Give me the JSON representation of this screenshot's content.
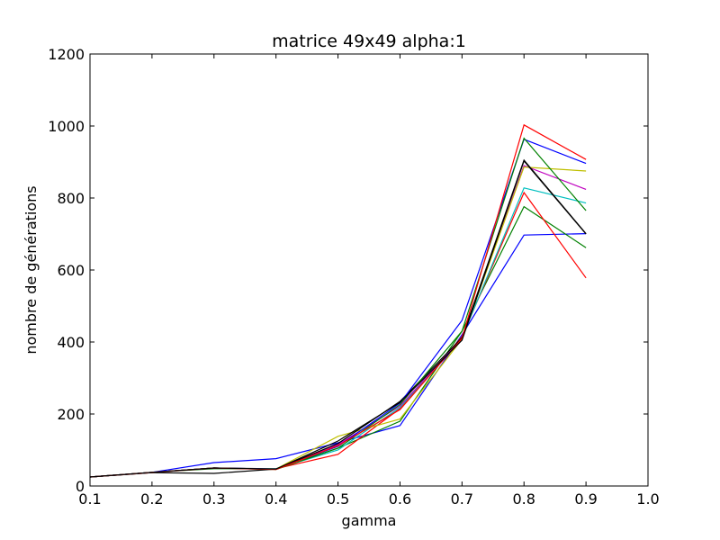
{
  "chart_data": {
    "type": "line",
    "title": "matrice 49x49 alpha:1",
    "xlabel": "gamma",
    "ylabel": "nombre de générations",
    "xlim": [
      0.1,
      1.0
    ],
    "ylim": [
      0,
      1200
    ],
    "xticks": [
      "0.1",
      "0.2",
      "0.3",
      "0.4",
      "0.5",
      "0.6",
      "0.7",
      "0.8",
      "0.9",
      "1.0"
    ],
    "yticks": [
      "0",
      "200",
      "400",
      "600",
      "800",
      "1000",
      "1200"
    ],
    "grid": false,
    "x": [
      0.1,
      0.2,
      0.3,
      0.4,
      0.5,
      0.6,
      0.7,
      0.8,
      0.9
    ],
    "series": [
      {
        "color": "#0000ff",
        "values": [
          25,
          38,
          65,
          76,
          120,
          168,
          420,
          697,
          701
        ]
      },
      {
        "color": "#008000",
        "values": [
          25,
          38,
          48,
          48,
          105,
          180,
          430,
          776,
          662
        ]
      },
      {
        "color": "#ff0000",
        "values": [
          25,
          37,
          50,
          48,
          88,
          215,
          415,
          815,
          578
        ]
      },
      {
        "color": "#00bfbf",
        "values": [
          25,
          38,
          50,
          48,
          100,
          218,
          412,
          828,
          786
        ]
      },
      {
        "color": "#bf00bf",
        "values": [
          25,
          38,
          50,
          47,
          115,
          222,
          410,
          890,
          824
        ]
      },
      {
        "color": "#bfbf00",
        "values": [
          25,
          38,
          50,
          47,
          138,
          186,
          408,
          886,
          875
        ]
      },
      {
        "color": "#000000",
        "values": [
          25,
          37,
          35,
          47,
          118,
          235,
          412,
          905,
          701
        ]
      },
      {
        "color": "#0000ff",
        "values": [
          25,
          38,
          50,
          47,
          110,
          230,
          460,
          963,
          896
        ]
      },
      {
        "color": "#008000",
        "values": [
          25,
          38,
          50,
          46,
          105,
          226,
          430,
          966,
          765
        ]
      },
      {
        "color": "#ff0000",
        "values": [
          25,
          38,
          50,
          46,
          112,
          212,
          410,
          1003,
          907
        ]
      },
      {
        "color": "#000000",
        "values": [
          25,
          38,
          50,
          47,
          125,
          232,
          405,
          903,
          700
        ]
      }
    ]
  }
}
